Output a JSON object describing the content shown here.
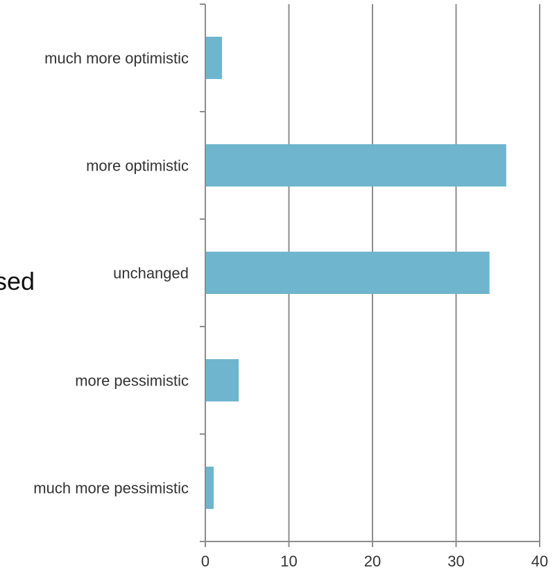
{
  "side_text": "sed",
  "chart_data": {
    "type": "bar",
    "orientation": "horizontal",
    "categories": [
      "much more optimistic",
      "more optimistic",
      "unchanged",
      "more pessimistic",
      "much more pessimistic"
    ],
    "values": [
      2,
      36,
      34,
      4,
      1
    ],
    "xlim": [
      0,
      40
    ],
    "xticks": [
      0,
      10,
      20,
      30,
      40
    ],
    "xtick_labels": [
      "0",
      "10",
      "20",
      "30",
      "40"
    ],
    "grid": "vertical",
    "bar_color": "#6fb5ce",
    "grid_color": "#8c8c8c",
    "title": "",
    "xlabel": "",
    "ylabel": ""
  }
}
